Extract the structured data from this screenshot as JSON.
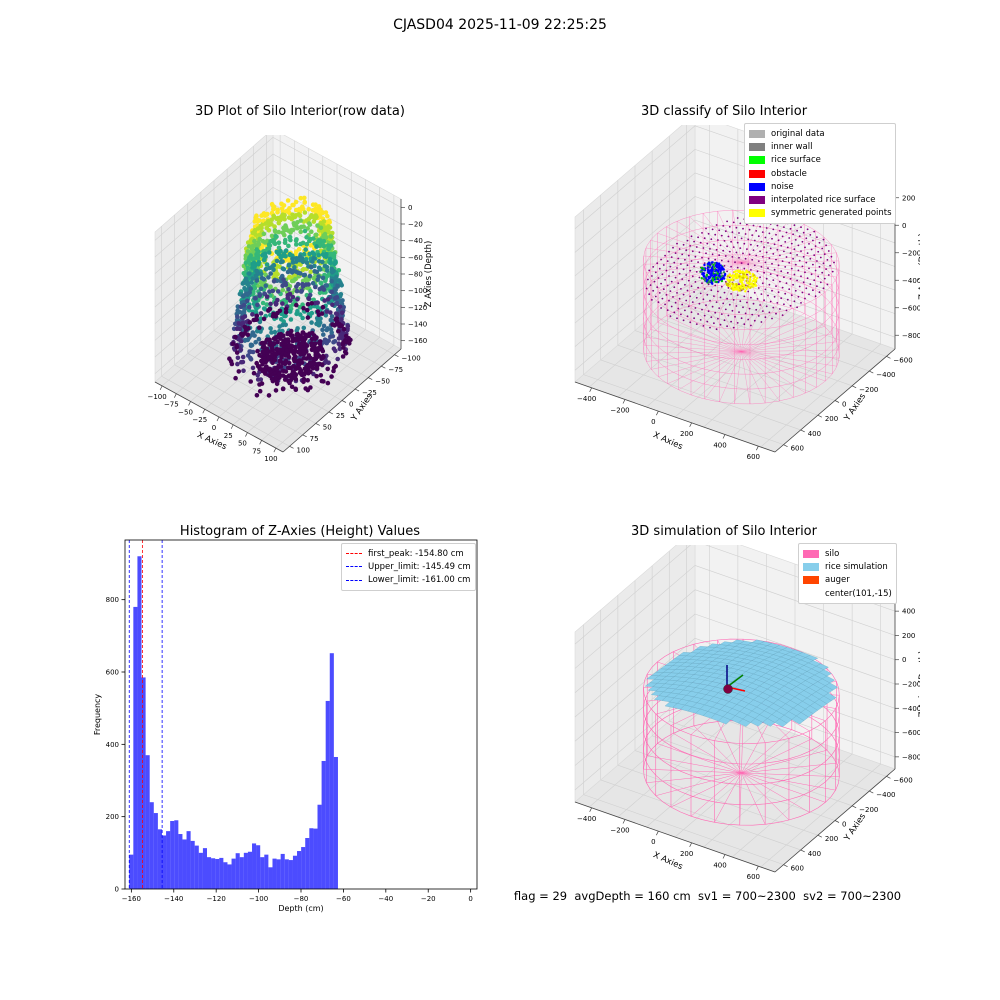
{
  "figure": {
    "suptitle": "CJASD04 2025-11-09 22:25:25",
    "footer": "flag = 29  avgDepth = 160 cm  sv1 = 700~2300  sv2 = 700~2300"
  },
  "panels": {
    "raw": {
      "title": "3D Plot of Silo Interior(row data)",
      "xlabel": "X Axies",
      "ylabel": "Y Axies",
      "zlabel": "Z Axies (Depth)",
      "xticks": [
        "−100",
        "−75",
        "−50",
        "−25",
        "0",
        "25",
        "50",
        "75",
        "100"
      ],
      "yticks": [
        "100",
        "75",
        "50",
        "25",
        "0",
        "−25",
        "−50",
        "−75",
        "−100"
      ],
      "zticks": [
        "0",
        "−20",
        "−40",
        "−60",
        "−80",
        "−100",
        "−120",
        "−140",
        "−160"
      ]
    },
    "classify": {
      "title": "3D classify of Silo Interior",
      "xlabel": "X Axies",
      "ylabel": "Y Axies",
      "zlabel": "Z Axies (Depth)",
      "xticks": [
        "−400",
        "−200",
        "0",
        "200",
        "400",
        "600"
      ],
      "yticks": [
        "600",
        "400",
        "200",
        "0",
        "−200",
        "−400",
        "−600"
      ],
      "zticks": [
        "200",
        "0",
        "−200",
        "−400",
        "−600",
        "−800"
      ],
      "legend": [
        {
          "label": "original data",
          "color": "#b0b0b0"
        },
        {
          "label": "inner wall",
          "color": "#808080"
        },
        {
          "label": "rice surface",
          "color": "#00ff00"
        },
        {
          "label": "obstacle",
          "color": "#ff0000"
        },
        {
          "label": "noise",
          "color": "#0000ff"
        },
        {
          "label": "interpolated rice surface",
          "color": "#800080"
        },
        {
          "label": "symmetric generated points",
          "color": "#ffff00"
        }
      ]
    },
    "simulation": {
      "title": "3D simulation of Silo Interior",
      "xlabel": "X Axies",
      "ylabel": "Y Axies",
      "zlabel": "Z Axies (Depth)",
      "xticks": [
        "−400",
        "−200",
        "0",
        "200",
        "400",
        "600"
      ],
      "yticks": [
        "600",
        "400",
        "200",
        "0",
        "−200",
        "−400",
        "−600"
      ],
      "zticks": [
        "400",
        "200",
        "0",
        "−200",
        "−400",
        "−600",
        "−800"
      ],
      "legend": [
        {
          "label": "silo",
          "color": "#ff69b4"
        },
        {
          "label": "rice simulation",
          "color": "#87ceeb"
        },
        {
          "label": "auger",
          "color": "#ff4500"
        },
        {
          "label": "center(101,-15)",
          "color": null
        }
      ]
    }
  },
  "chart_data": {
    "type": "bar",
    "title": "Histogram of Z-Axies (Height) Values",
    "xlabel": "Depth (cm)",
    "ylabel": "Frequency",
    "xlim": [
      -163,
      3
    ],
    "ylim": [
      0,
      965
    ],
    "xticks": [
      -160,
      -140,
      -120,
      -100,
      -80,
      -60,
      -40,
      -20,
      0
    ],
    "yticks": [
      0,
      200,
      400,
      600,
      800
    ],
    "bin_start": -161.0,
    "bin_width": 1.93,
    "color": "#0000ff",
    "values": [
      95,
      780,
      920,
      585,
      370,
      240,
      210,
      165,
      148,
      160,
      188,
      190,
      152,
      137,
      160,
      133,
      120,
      100,
      113,
      88,
      85,
      83,
      86,
      74,
      68,
      84,
      99,
      88,
      100,
      103,
      126,
      121,
      88,
      95,
      60,
      84,
      82,
      97,
      82,
      80,
      92,
      105,
      116,
      141,
      168,
      167,
      233,
      354,
      520,
      652,
      365
    ],
    "vlines": [
      {
        "label": "first_peak: -154.80 cm",
        "x": -154.8,
        "color": "#ff0000"
      },
      {
        "label": "Upper_limit: -145.49 cm",
        "x": -145.49,
        "color": "#0000ff"
      },
      {
        "label": "Lower_limit: -161.00 cm",
        "x": -161.0,
        "color": "#0000ff"
      }
    ]
  }
}
